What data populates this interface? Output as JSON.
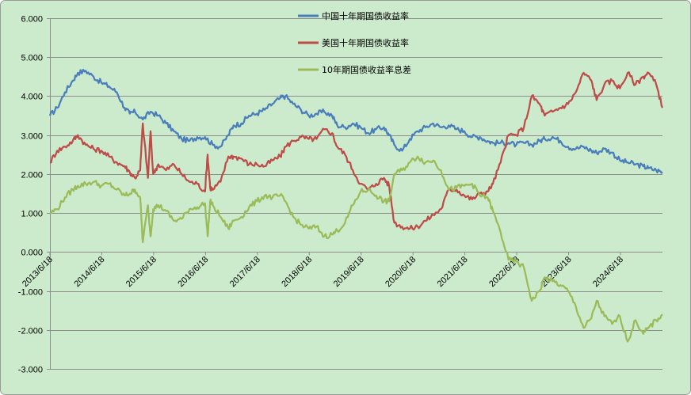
{
  "chart_data": {
    "type": "line",
    "title": "",
    "xlabel": "",
    "ylabel": "",
    "ylim": [
      -3,
      6
    ],
    "y_ticks": [
      "6.000",
      "5.000",
      "4.000",
      "3.000",
      "2.000",
      "1.000",
      "0.000",
      "-1.000",
      "-2.000",
      "-3.000"
    ],
    "x_ticks": [
      "2013/6/18",
      "2014/6/18",
      "2015/6/18",
      "2016/6/18",
      "2017/6/18",
      "2018/6/18",
      "2019/6/18",
      "2020/6/18",
      "2021/6/18",
      "2022/6/18",
      "2023/6/18",
      "2024/6/18"
    ],
    "x_range": [
      2013.46,
      2025.27
    ],
    "grid": "horizontal",
    "legend_position": "top-center",
    "background_color": "#ccebcc",
    "series": [
      {
        "name": "中国十年期国债收益率",
        "color": "#4a7ebb",
        "x": [
          2013.46,
          2013.6,
          2013.75,
          2013.9,
          2014.0,
          2014.15,
          2014.3,
          2014.45,
          2014.6,
          2014.75,
          2014.9,
          2015.0,
          2015.1,
          2015.25,
          2015.4,
          2015.55,
          2015.7,
          2015.85,
          2016.0,
          2016.15,
          2016.3,
          2016.45,
          2016.6,
          2016.75,
          2016.9,
          2017.0,
          2017.15,
          2017.3,
          2017.45,
          2017.6,
          2017.75,
          2017.9,
          2018.0,
          2018.15,
          2018.3,
          2018.45,
          2018.6,
          2018.75,
          2018.9,
          2019.0,
          2019.15,
          2019.3,
          2019.45,
          2019.6,
          2019.75,
          2019.9,
          2020.0,
          2020.1,
          2020.25,
          2020.4,
          2020.55,
          2020.7,
          2020.85,
          2021.0,
          2021.15,
          2021.3,
          2021.45,
          2021.6,
          2021.75,
          2021.9,
          2022.0,
          2022.15,
          2022.3,
          2022.45,
          2022.6,
          2022.75,
          2022.9,
          2023.0,
          2023.15,
          2023.3,
          2023.45,
          2023.6,
          2023.75,
          2023.9,
          2024.0,
          2024.15,
          2024.3,
          2024.45,
          2024.6,
          2024.75,
          2024.9,
          2025.0,
          2025.15,
          2025.27
        ],
        "y": [
          3.5,
          3.7,
          4.1,
          4.4,
          4.6,
          4.65,
          4.5,
          4.35,
          4.25,
          4.1,
          3.7,
          3.55,
          3.6,
          3.4,
          3.6,
          3.5,
          3.3,
          3.1,
          2.9,
          2.85,
          2.95,
          2.95,
          2.75,
          2.7,
          3.0,
          3.25,
          3.3,
          3.5,
          3.55,
          3.65,
          3.8,
          3.95,
          4.0,
          3.8,
          3.65,
          3.5,
          3.55,
          3.6,
          3.5,
          3.25,
          3.2,
          3.3,
          3.2,
          3.05,
          3.15,
          3.2,
          3.0,
          2.75,
          2.6,
          2.9,
          3.1,
          3.2,
          3.3,
          3.2,
          3.25,
          3.15,
          3.1,
          2.95,
          2.95,
          2.85,
          2.8,
          2.8,
          2.8,
          2.75,
          2.8,
          2.75,
          2.85,
          2.9,
          2.95,
          2.85,
          2.7,
          2.65,
          2.7,
          2.6,
          2.55,
          2.65,
          2.55,
          2.35,
          2.3,
          2.25,
          2.2,
          2.15,
          2.1,
          2.05
        ]
      },
      {
        "name": "美国十年期国债收益率",
        "color": "#be4b48",
        "x": [
          2013.46,
          2013.6,
          2013.75,
          2013.9,
          2014.0,
          2014.15,
          2014.3,
          2014.45,
          2014.6,
          2014.75,
          2014.9,
          2015.0,
          2015.1,
          2015.2,
          2015.25,
          2015.35,
          2015.4,
          2015.45,
          2015.55,
          2015.7,
          2015.85,
          2016.0,
          2016.15,
          2016.3,
          2016.45,
          2016.5,
          2016.55,
          2016.6,
          2016.75,
          2016.9,
          2017.0,
          2017.15,
          2017.3,
          2017.45,
          2017.6,
          2017.75,
          2017.9,
          2018.0,
          2018.15,
          2018.3,
          2018.45,
          2018.6,
          2018.75,
          2018.9,
          2019.0,
          2019.15,
          2019.3,
          2019.45,
          2019.6,
          2019.75,
          2019.9,
          2020.0,
          2020.1,
          2020.25,
          2020.4,
          2020.55,
          2020.7,
          2020.85,
          2021.0,
          2021.15,
          2021.3,
          2021.45,
          2021.6,
          2021.75,
          2021.9,
          2022.0,
          2022.15,
          2022.3,
          2022.45,
          2022.6,
          2022.75,
          2022.9,
          2023.0,
          2023.15,
          2023.3,
          2023.45,
          2023.6,
          2023.75,
          2023.9,
          2024.0,
          2024.15,
          2024.3,
          2024.45,
          2024.6,
          2024.75,
          2024.9,
          2025.0,
          2025.15,
          2025.27
        ],
        "y": [
          2.3,
          2.6,
          2.7,
          2.85,
          3.0,
          2.75,
          2.65,
          2.6,
          2.45,
          2.3,
          2.2,
          2.05,
          1.9,
          2.1,
          3.3,
          1.9,
          3.1,
          2.0,
          2.25,
          2.1,
          2.25,
          2.0,
          1.8,
          1.75,
          1.55,
          2.5,
          1.65,
          1.6,
          1.8,
          2.45,
          2.45,
          2.4,
          2.25,
          2.25,
          2.2,
          2.35,
          2.45,
          2.7,
          2.85,
          2.95,
          2.9,
          2.9,
          3.15,
          3.05,
          2.7,
          2.5,
          2.1,
          1.75,
          1.6,
          1.75,
          1.9,
          1.7,
          0.75,
          0.65,
          0.6,
          0.65,
          0.8,
          0.95,
          1.1,
          1.6,
          1.6,
          1.45,
          1.35,
          1.5,
          1.55,
          1.75,
          2.3,
          3.0,
          3.0,
          3.2,
          4.0,
          3.8,
          3.5,
          3.6,
          3.7,
          3.8,
          4.1,
          4.6,
          4.4,
          3.9,
          4.3,
          4.4,
          4.2,
          4.6,
          4.3,
          4.5,
          4.6,
          4.3,
          3.7
        ]
      },
      {
        "name": "10年期国债收益率息差",
        "color": "#9bbb59",
        "x": [
          2013.46,
          2013.6,
          2013.75,
          2013.9,
          2014.0,
          2014.15,
          2014.3,
          2014.45,
          2014.6,
          2014.75,
          2014.9,
          2015.0,
          2015.1,
          2015.2,
          2015.25,
          2015.35,
          2015.4,
          2015.45,
          2015.55,
          2015.7,
          2015.85,
          2016.0,
          2016.15,
          2016.3,
          2016.45,
          2016.5,
          2016.55,
          2016.6,
          2016.75,
          2016.9,
          2017.0,
          2017.15,
          2017.3,
          2017.45,
          2017.6,
          2017.75,
          2017.9,
          2018.0,
          2018.15,
          2018.3,
          2018.45,
          2018.6,
          2018.75,
          2018.9,
          2019.0,
          2019.15,
          2019.3,
          2019.45,
          2019.6,
          2019.75,
          2019.9,
          2020.0,
          2020.1,
          2020.25,
          2020.4,
          2020.55,
          2020.7,
          2020.85,
          2021.0,
          2021.15,
          2021.3,
          2021.45,
          2021.6,
          2021.75,
          2021.9,
          2022.0,
          2022.15,
          2022.3,
          2022.45,
          2022.6,
          2022.75,
          2022.9,
          2023.0,
          2023.15,
          2023.3,
          2023.45,
          2023.6,
          2023.75,
          2023.9,
          2024.0,
          2024.15,
          2024.3,
          2024.45,
          2024.6,
          2024.75,
          2024.9,
          2025.0,
          2025.15,
          2025.27
        ],
        "y": [
          1.0,
          1.1,
          1.4,
          1.6,
          1.7,
          1.75,
          1.8,
          1.7,
          1.75,
          1.6,
          1.45,
          1.5,
          1.6,
          1.4,
          0.25,
          1.2,
          0.4,
          1.1,
          1.2,
          1.05,
          0.8,
          0.85,
          1.1,
          1.15,
          1.25,
          0.4,
          1.3,
          1.2,
          0.9,
          0.6,
          0.8,
          0.9,
          1.15,
          1.3,
          1.45,
          1.4,
          1.45,
          1.3,
          0.9,
          0.7,
          0.6,
          0.65,
          0.4,
          0.45,
          0.55,
          0.75,
          1.2,
          1.55,
          1.6,
          1.45,
          1.3,
          1.3,
          2.0,
          2.1,
          2.3,
          2.45,
          2.3,
          2.35,
          2.1,
          1.6,
          1.65,
          1.7,
          1.75,
          1.45,
          1.4,
          1.05,
          0.5,
          -0.2,
          -0.25,
          -0.4,
          -1.25,
          -1.0,
          -0.65,
          -0.75,
          -0.85,
          -1.0,
          -1.4,
          -1.95,
          -1.7,
          -1.25,
          -1.65,
          -1.85,
          -1.65,
          -2.3,
          -1.75,
          -2.1,
          -1.95,
          -1.75,
          -1.6
        ]
      }
    ]
  }
}
